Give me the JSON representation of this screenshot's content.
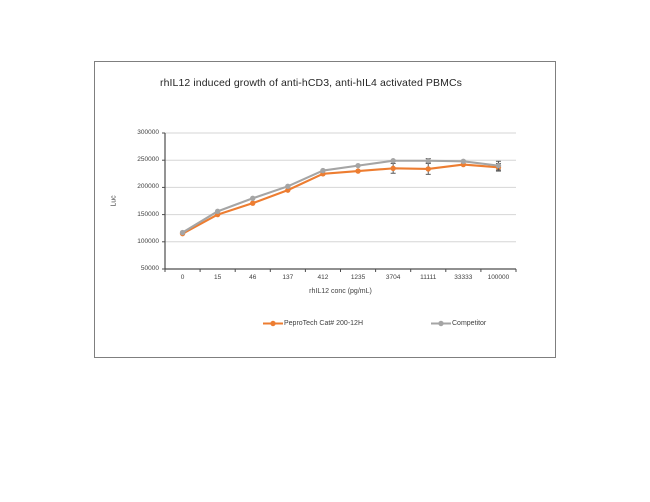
{
  "chart_data": {
    "type": "line",
    "title": "rhIL12 induced growth of anti-hCD3, anti-hIL4 activated PBMCs",
    "xlabel": "rhIL12 conc (pg/mL)",
    "ylabel": "Luc",
    "categories": [
      "0",
      "15",
      "46",
      "137",
      "412",
      "1235",
      "3704",
      "11111",
      "33333",
      "100000"
    ],
    "y_ticks": [
      50000,
      100000,
      150000,
      200000,
      250000,
      300000
    ],
    "ylim": [
      50000,
      300000
    ],
    "grid": "horizontal",
    "legend_position": "bottom",
    "marker": "circle",
    "series": [
      {
        "name": "PeproTech Cat# 200-12H",
        "color": "#ED7D31",
        "values": [
          115000,
          150000,
          171000,
          195000,
          225000,
          230000,
          235000,
          234000,
          242000,
          237000
        ],
        "error": [
          0,
          0,
          0,
          0,
          0,
          0,
          9000,
          10000,
          0,
          7000
        ]
      },
      {
        "name": "Competitor",
        "color": "#A5A5A5",
        "values": [
          117000,
          156000,
          180000,
          202000,
          231000,
          240000,
          249000,
          249000,
          248000,
          240000
        ],
        "error": [
          0,
          0,
          0,
          0,
          0,
          0,
          0,
          4000,
          0,
          8000
        ]
      }
    ],
    "colors": {
      "gridline": "#D6D6D6",
      "axis": "#4d4d4d",
      "error_bar": "#595959",
      "tick_text": "#404040",
      "frame_border": "#7f7f7f"
    }
  }
}
